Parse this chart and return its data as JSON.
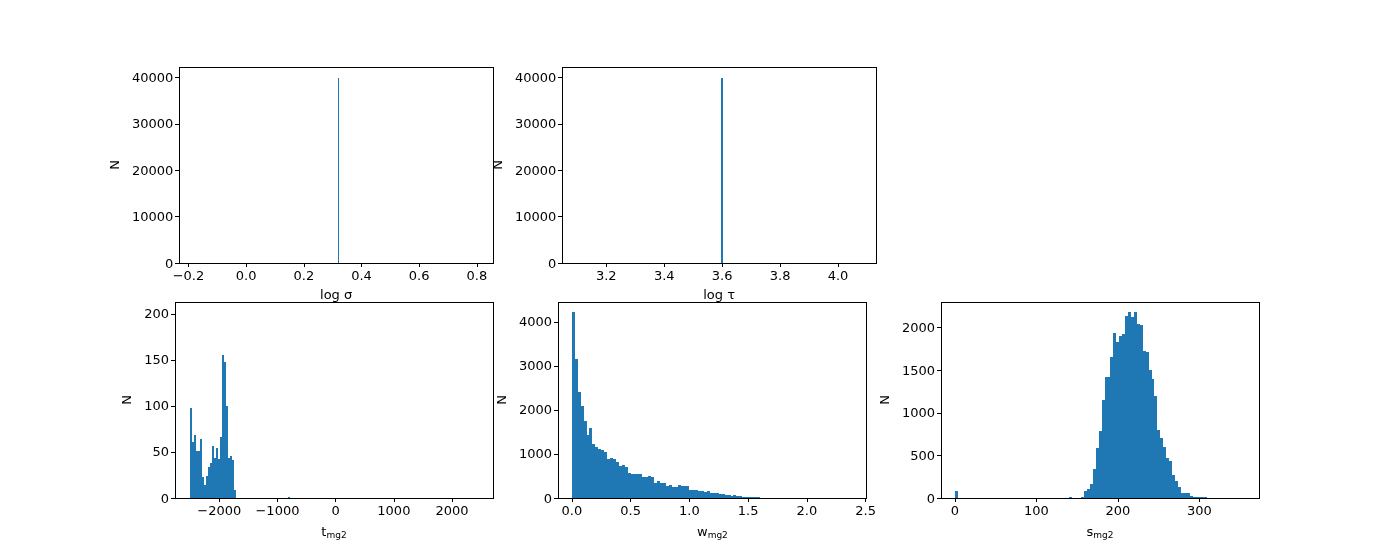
{
  "chart_data": [
    {
      "type": "histogram",
      "xlabel": "log σ",
      "ylabel": "N",
      "color": "#1f77b4",
      "bins": [
        0.317,
        0.321
      ],
      "values": [
        40000
      ],
      "xlim": [
        -0.232,
        0.856
      ],
      "xticks": [
        {
          "value": -0.2,
          "label": "−0.2"
        },
        {
          "value": 0,
          "label": "0.0"
        },
        0.2,
        0.4,
        0.6,
        0.8
      ],
      "ylim": [
        0,
        42300
      ],
      "yticks": [
        0,
        10000,
        20000,
        30000,
        40000
      ]
    },
    {
      "type": "histogram",
      "xlabel": "log τ",
      "ylabel": "N",
      "color": "#1f77b4",
      "bins": [
        3.597,
        3.603
      ],
      "values": [
        40000
      ],
      "xlim": [
        3.048,
        4.131
      ],
      "xticks": [
        3.2,
        3.4,
        3.6,
        3.8,
        {
          "value": 4,
          "label": "4.0"
        }
      ],
      "ylim": [
        0,
        42300
      ],
      "yticks": [
        0,
        10000,
        20000,
        30000,
        40000
      ]
    },
    {
      "type": "histogram",
      "xlabel": "t$_{mg2}$",
      "ylabel": "N",
      "color": "#1f77b4",
      "bins": [
        -2500,
        -2466,
        -2432,
        -2398,
        -2364,
        -2330,
        -2296,
        -2262,
        -2228,
        -2194,
        -2160,
        -2126,
        -2092,
        -2058,
        -2024,
        -1990,
        -1956,
        -1922,
        -1888,
        -1854,
        -1820,
        -1786,
        -1752,
        -1718,
        -820,
        -786
      ],
      "values": [
        98,
        61,
        68,
        51,
        51,
        64,
        23,
        14,
        24,
        34,
        38,
        56,
        44,
        54,
        42,
        66,
        155,
        148,
        100,
        43,
        46,
        41,
        9,
        0,
        1
      ],
      "xlim": [
        -2760,
        2703
      ],
      "xticks": [
        {
          "value": -2000,
          "label": "−2000"
        },
        {
          "value": -1000,
          "label": "−1000"
        },
        0,
        1000,
        2000
      ],
      "ylim": [
        0,
        213
      ],
      "yticks": [
        0,
        50,
        100,
        150,
        200
      ]
    },
    {
      "type": "histogram",
      "xlabel": "w$_{mg2}$",
      "ylabel": "N",
      "color": "#1f77b4",
      "bins": [
        0,
        0.025,
        0.05,
        0.075,
        0.1,
        0.125,
        0.15,
        0.175,
        0.2,
        0.225,
        0.25,
        0.275,
        0.3,
        0.325,
        0.35,
        0.375,
        0.4,
        0.425,
        0.45,
        0.475,
        0.5,
        0.525,
        0.55,
        0.575,
        0.6,
        0.625,
        0.65,
        0.675,
        0.7,
        0.725,
        0.75,
        0.775,
        0.8,
        0.825,
        0.85,
        0.875,
        0.9,
        0.925,
        0.95,
        0.975,
        1.0,
        1.025,
        1.05,
        1.075,
        1.1,
        1.125,
        1.15,
        1.175,
        1.2,
        1.225,
        1.25,
        1.275,
        1.3,
        1.325,
        1.35,
        1.375,
        1.4,
        1.425,
        1.45,
        1.475,
        1.5,
        1.525,
        1.55,
        1.575,
        1.6
      ],
      "values": [
        4230,
        3160,
        2410,
        2090,
        1750,
        1430,
        1590,
        1230,
        1160,
        1110,
        1090,
        1050,
        890,
        910,
        890,
        820,
        730,
        750,
        710,
        570,
        550,
        550,
        550,
        550,
        480,
        480,
        500,
        480,
        340,
        390,
        340,
        340,
        270,
        300,
        250,
        250,
        300,
        270,
        270,
        270,
        180,
        180,
        180,
        160,
        160,
        140,
        160,
        110,
        110,
        110,
        90,
        90,
        70,
        70,
        50,
        70,
        50,
        50,
        20,
        20,
        20,
        20,
        20,
        20
      ],
      "xlim": [
        -0.118,
        2.51
      ],
      "xticks": [
        {
          "value": 0,
          "label": "0.0"
        },
        0.5,
        {
          "value": 1,
          "label": "1.0"
        },
        1.5,
        {
          "value": 2,
          "label": "2.0"
        },
        2.5
      ],
      "ylim": [
        0,
        4450
      ],
      "yticks": [
        0,
        1000,
        2000,
        3000,
        4000
      ]
    },
    {
      "type": "histogram",
      "xlabel": "s$_{mg2}$",
      "ylabel": "N",
      "color": "#1f77b4",
      "bins": [
        0,
        3.6,
        140.4,
        144,
        154.8,
        158.4,
        162,
        165.6,
        169.2,
        172.8,
        176.4,
        180,
        183.6,
        187.2,
        190.8,
        194.4,
        198,
        201.6,
        205.2,
        208.8,
        212.4,
        216,
        219.6,
        223.2,
        226.8,
        230.4,
        234,
        237.6,
        241.2,
        244.8,
        248.4,
        252,
        255.6,
        259.2,
        262.8,
        266.4,
        270,
        273.6,
        277.2,
        280.8,
        284.4,
        288,
        291.6,
        295.2,
        298.8,
        302.4,
        306,
        309.6
      ],
      "values": [
        80,
        0,
        10,
        0,
        10,
        80,
        100,
        170,
        340,
        590,
        790,
        1150,
        1420,
        1420,
        1650,
        1940,
        1830,
        1900,
        1930,
        2130,
        2180,
        2120,
        2180,
        2040,
        2030,
        1730,
        1710,
        1500,
        1400,
        1200,
        800,
        700,
        600,
        470,
        430,
        270,
        200,
        130,
        60,
        60,
        60,
        20,
        10,
        10,
        10,
        10,
        10
      ],
      "xlim": [
        -17,
        373
      ],
      "xticks": [
        0,
        100,
        200,
        300
      ],
      "ylim": [
        0,
        2300
      ],
      "yticks": [
        0,
        500,
        1000,
        1500,
        2000
      ]
    }
  ]
}
